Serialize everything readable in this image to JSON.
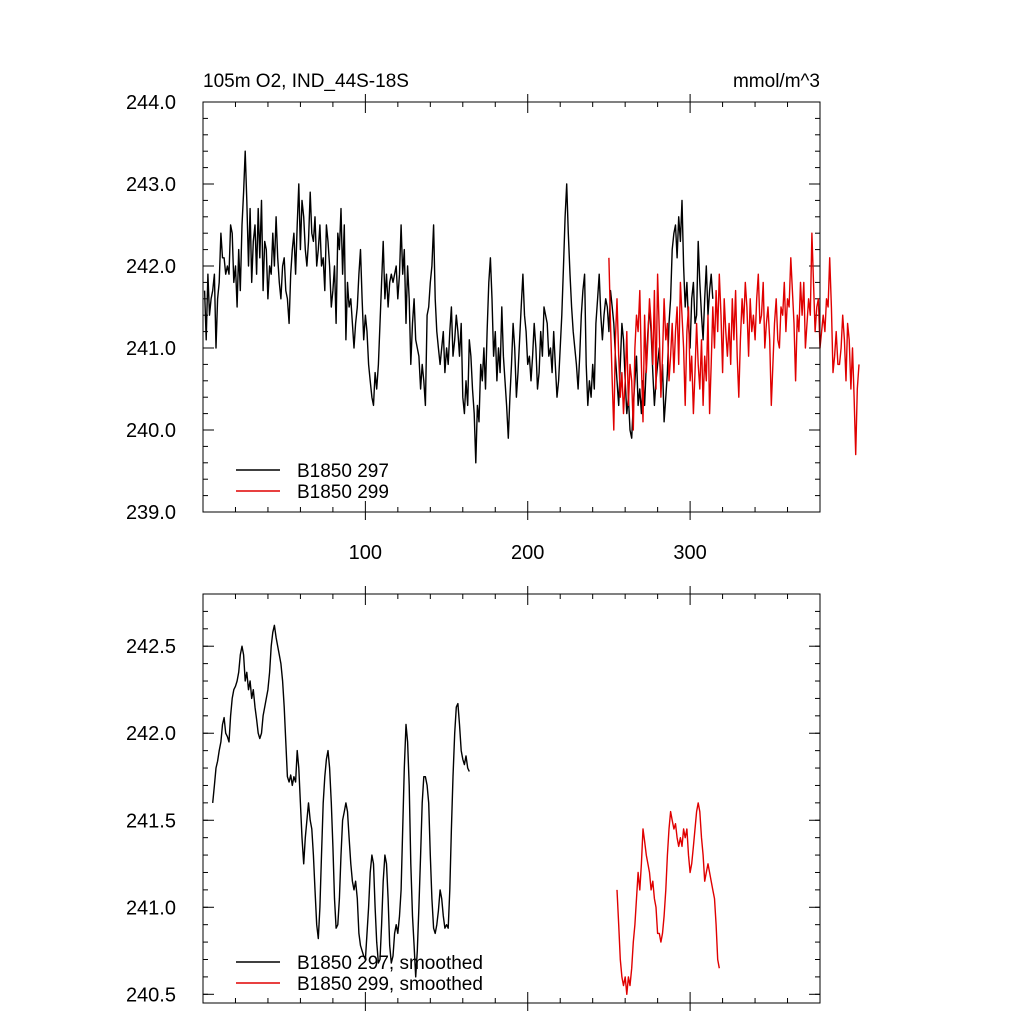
{
  "colors": {
    "series_297": "#000000",
    "series_299": "#e00000"
  },
  "chart_data": [
    {
      "type": "line",
      "title_left": "105m O2, IND_44S-18S",
      "title_right": "mmol/m^3",
      "xlim": [
        0,
        380
      ],
      "ylim": [
        239.0,
        244.0
      ],
      "x_ticks": [
        100,
        200,
        300
      ],
      "x_tick_labels": [
        "100",
        "200",
        "300"
      ],
      "y_ticks": [
        239.0,
        240.0,
        241.0,
        242.0,
        243.0,
        244.0
      ],
      "y_tick_labels": [
        "239.0",
        "240.0",
        "241.0",
        "242.0",
        "243.0",
        "244.0"
      ],
      "legend_position": "bottom-left",
      "series": [
        {
          "name": "B1850 297",
          "color": "#000000",
          "x_start": 1,
          "values": [
            241.7,
            241.1,
            241.9,
            241.4,
            241.6,
            241.7,
            241.9,
            241.0,
            241.6,
            241.8,
            242.4,
            242.1,
            242.1,
            241.9,
            242.0,
            241.9,
            242.5,
            242.4,
            241.8,
            242.0,
            241.5,
            242.2,
            241.7,
            242.5,
            242.9,
            243.4,
            242.8,
            242.0,
            242.7,
            241.8,
            242.3,
            242.5,
            241.9,
            242.7,
            242.1,
            242.8,
            241.7,
            242.3,
            242.2,
            241.6,
            242.0,
            241.9,
            242.4,
            242.0,
            242.6,
            242.1,
            241.8,
            241.6,
            242.0,
            242.1,
            241.7,
            241.6,
            241.3,
            241.9,
            242.2,
            242.4,
            241.9,
            242.5,
            243.0,
            242.2,
            242.8,
            242.6,
            242.2,
            242.0,
            242.3,
            242.9,
            242.4,
            242.3,
            242.6,
            242.0,
            242.2,
            242.5,
            242.0,
            242.1,
            241.7,
            242.5,
            242.3,
            242.0,
            241.5,
            241.7,
            242.0,
            241.3,
            242.4,
            242.2,
            242.7,
            241.9,
            242.5,
            241.1,
            241.8,
            241.5,
            241.6,
            241.3,
            241.0,
            241.3,
            241.5,
            241.9,
            242.2,
            241.6,
            241.1,
            241.4,
            241.2,
            240.8,
            240.6,
            240.4,
            240.3,
            240.7,
            240.5,
            240.8,
            241.3,
            241.8,
            242.3,
            241.6,
            241.9,
            241.5,
            241.8,
            241.9,
            241.8,
            241.9,
            242.0,
            241.6,
            241.9,
            242.5,
            241.9,
            242.2,
            241.3,
            242.0,
            241.6,
            240.8,
            241.3,
            241.6,
            241.1,
            241.0,
            240.9,
            240.5,
            240.8,
            240.6,
            240.3,
            241.4,
            241.5,
            241.8,
            242.0,
            242.5,
            241.6,
            241.2,
            241.0,
            240.8,
            241.0,
            241.2,
            240.7,
            241.0,
            240.8,
            241.2,
            241.5,
            240.9,
            241.1,
            241.4,
            241.2,
            240.9,
            241.3,
            240.4,
            240.2,
            240.6,
            240.3,
            241.1,
            240.9,
            240.5,
            240.2,
            239.6,
            240.3,
            240.1,
            240.8,
            240.6,
            241.0,
            240.5,
            241.2,
            241.8,
            242.1,
            241.6,
            240.9,
            241.2,
            240.6,
            241.0,
            240.7,
            241.5,
            240.9,
            240.6,
            240.3,
            239.9,
            240.4,
            240.8,
            241.3,
            241.0,
            240.4,
            240.7,
            241.1,
            241.5,
            241.9,
            241.4,
            241.2,
            240.8,
            240.9,
            240.6,
            240.9,
            241.3,
            241.0,
            240.5,
            240.7,
            241.2,
            240.9,
            241.5,
            241.4,
            241.3,
            240.9,
            241.0,
            240.7,
            241.2,
            240.8,
            240.4,
            240.6,
            241.0,
            241.4,
            242.0,
            242.6,
            243.0,
            242.4,
            241.9,
            241.5,
            241.2,
            241.0,
            240.8,
            240.5,
            240.9,
            241.4,
            241.7,
            241.9,
            240.8,
            240.3,
            240.6,
            240.4,
            240.8,
            240.5,
            241.3,
            241.6,
            241.9,
            241.4,
            241.1,
            241.4,
            241.6,
            241.5,
            241.2,
            241.7,
            241.5,
            241.3,
            240.9,
            240.6,
            240.3,
            240.8,
            241.3,
            241.1,
            240.6,
            240.2,
            240.4,
            240.0,
            239.9,
            240.3,
            240.6,
            240.9,
            240.3,
            240.5,
            240.2,
            240.6,
            240.3,
            240.8,
            241.2,
            241.5,
            241.2,
            240.7,
            240.3,
            240.6,
            240.8,
            241.0,
            240.5,
            240.8,
            240.1,
            240.4,
            240.7,
            241.3,
            241.6,
            242.2,
            242.4,
            242.5,
            242.1,
            242.6,
            242.3,
            242.8,
            242.0,
            241.5,
            241.8,
            241.3,
            241.0,
            241.6,
            241.8,
            241.3,
            241.4,
            242.3,
            241.8,
            241.4,
            241.1,
            241.6,
            242.0,
            241.4,
            241.7,
            241.9,
            241.6
          ]
        },
        {
          "name": "B1850 299",
          "color": "#e00000",
          "x_start": 250,
          "values": [
            242.1,
            241.3,
            240.6,
            240.0,
            241.1,
            241.6,
            240.9,
            240.4,
            240.7,
            240.2,
            240.6,
            241.2,
            240.3,
            240.8,
            240.6,
            240.0,
            241.0,
            241.4,
            241.2,
            241.7,
            240.8,
            240.1,
            241.4,
            240.7,
            241.1,
            241.6,
            241.3,
            240.8,
            241.7,
            240.5,
            241.9,
            241.2,
            240.4,
            240.9,
            241.6,
            241.1,
            241.3,
            240.6,
            240.9,
            241.3,
            240.7,
            241.2,
            241.5,
            240.8,
            241.8,
            241.4,
            241.0,
            240.3,
            241.2,
            241.5,
            240.6,
            240.9,
            240.2,
            240.7,
            241.3,
            240.8,
            240.5,
            241.1,
            240.3,
            240.9,
            240.6,
            241.4,
            240.2,
            240.8,
            241.5,
            241.0,
            241.7,
            241.2,
            241.9,
            241.4,
            240.7,
            241.6,
            241.2,
            240.9,
            241.3,
            240.8,
            241.6,
            241.1,
            241.7,
            240.9,
            240.4,
            241.1,
            241.6,
            241.3,
            241.8,
            241.5,
            240.9,
            241.6,
            241.2,
            241.4,
            241.1,
            241.6,
            241.9,
            241.3,
            241.4,
            241.8,
            241.0,
            241.3,
            241.5,
            241.1,
            240.3,
            240.8,
            241.3,
            241.6,
            241.1,
            241.0,
            241.5,
            241.4,
            241.8,
            241.2,
            241.6,
            241.5,
            242.1,
            241.7,
            241.3,
            240.6,
            241.4,
            241.2,
            241.8,
            241.4,
            241.8,
            241.0,
            241.3,
            241.6,
            241.4,
            242.4,
            241.8,
            241.2,
            241.5,
            241.6,
            241.0,
            241.2,
            241.4,
            241.2,
            241.6,
            241.5,
            242.1,
            241.5,
            240.7,
            240.9,
            241.2,
            240.8,
            240.8,
            241.0,
            241.4,
            241.1,
            240.6,
            241.3,
            241.1,
            240.5,
            241.0,
            240.4,
            239.7,
            240.5,
            240.8
          ]
        }
      ],
      "legend": [
        "B1850 297",
        "B1850 299"
      ]
    },
    {
      "type": "line",
      "xlim": [
        0,
        380
      ],
      "ylim": [
        240.45,
        242.8
      ],
      "y_ticks": [
        240.5,
        241.0,
        241.5,
        242.0,
        242.5
      ],
      "y_tick_labels": [
        "240.5",
        "241.0",
        "241.5",
        "242.0",
        "242.5"
      ],
      "x_ticks": [
        100,
        200,
        300
      ],
      "legend_position": "bottom-left",
      "series": [
        {
          "name": "B1850 297, smoothed",
          "color": "#000000",
          "x_start": 6,
          "values": [
            241.6,
            241.7,
            241.8,
            241.84,
            241.9,
            241.95,
            242.05,
            242.09,
            242.0,
            241.98,
            241.95,
            242.1,
            242.2,
            242.25,
            242.27,
            242.3,
            242.35,
            242.45,
            242.5,
            242.45,
            242.3,
            242.35,
            242.25,
            242.3,
            242.2,
            242.25,
            242.15,
            242.08,
            242.0,
            241.97,
            242.0,
            242.1,
            242.15,
            242.2,
            242.25,
            242.35,
            242.5,
            242.58,
            242.62,
            242.55,
            242.5,
            242.45,
            242.4,
            242.3,
            242.15,
            241.95,
            241.75,
            241.72,
            241.76,
            241.7,
            241.75,
            241.72,
            241.9,
            241.8,
            241.6,
            241.4,
            241.25,
            241.4,
            241.5,
            241.6,
            241.5,
            241.45,
            241.3,
            241.1,
            240.9,
            240.82,
            241.0,
            241.3,
            241.6,
            241.75,
            241.85,
            241.9,
            241.8,
            241.6,
            241.35,
            241.05,
            240.88,
            240.9,
            241.05,
            241.3,
            241.5,
            241.55,
            241.6,
            241.55,
            241.4,
            241.25,
            241.15,
            241.1,
            241.15,
            241.05,
            240.85,
            240.78,
            240.75,
            240.72,
            240.7,
            240.85,
            241.0,
            241.2,
            241.3,
            241.25,
            241.0,
            240.8,
            240.68,
            240.7,
            240.9,
            241.15,
            241.3,
            241.25,
            241.05,
            240.78,
            240.68,
            240.72,
            240.85,
            240.9,
            240.85,
            240.95,
            241.1,
            241.45,
            241.8,
            242.05,
            241.95,
            241.7,
            241.25,
            240.95,
            240.78,
            240.6,
            240.75,
            241.0,
            241.3,
            241.6,
            241.75,
            241.75,
            241.7,
            241.6,
            241.3,
            241.05,
            240.88,
            240.85,
            240.9,
            240.98,
            241.1,
            241.05,
            240.95,
            240.88,
            240.9,
            240.88,
            241.1,
            241.45,
            241.75,
            242.0,
            242.15,
            242.17,
            242.05,
            241.9,
            241.85,
            241.82,
            241.87,
            241.8,
            241.78
          ]
        },
        {
          "name": "B1850 299, smoothed",
          "color": "#e00000",
          "x_start": 255,
          "values": [
            241.1,
            240.9,
            240.7,
            240.6,
            240.55,
            240.6,
            240.5,
            240.6,
            240.55,
            240.65,
            240.8,
            240.9,
            241.05,
            241.2,
            241.1,
            241.25,
            241.45,
            241.38,
            241.3,
            241.25,
            241.2,
            241.1,
            241.15,
            241.05,
            241.0,
            240.85,
            240.85,
            240.8,
            240.85,
            240.95,
            241.1,
            241.3,
            241.45,
            241.55,
            241.5,
            241.45,
            241.48,
            241.4,
            241.35,
            241.4,
            241.35,
            241.45,
            241.4,
            241.45,
            241.3,
            241.2,
            241.25,
            241.35,
            241.45,
            241.55,
            241.6,
            241.55,
            241.4,
            241.3,
            241.15,
            241.2,
            241.25,
            241.2,
            241.15,
            241.1,
            241.05,
            240.9,
            240.7,
            240.65
          ]
        }
      ],
      "legend": [
        "B1850 297, smoothed",
        "B1850 299, smoothed"
      ]
    }
  ]
}
